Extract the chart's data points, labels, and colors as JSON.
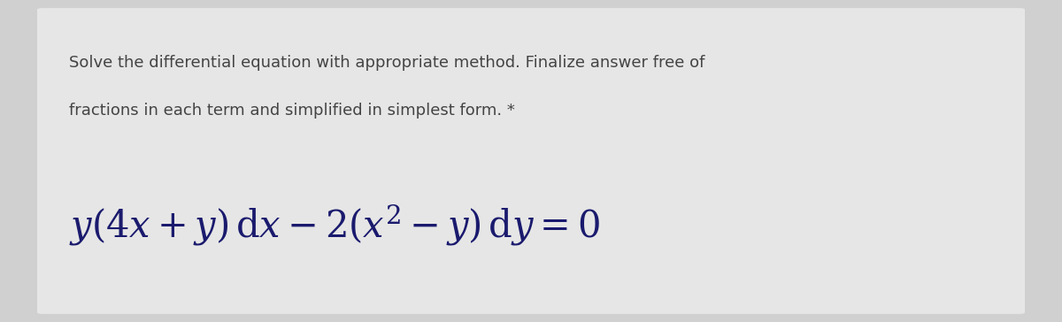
{
  "background_color": "#d0d0d0",
  "card_color": "#e6e6e6",
  "instruction_line1": "Solve the differential equation with appropriate method. Finalize answer free of",
  "instruction_line2": "fractions in each term and simplified in simplest form. *",
  "instruction_fontsize": 13.0,
  "instruction_color": "#444444",
  "equation": "$y(4x + y)\\,\\mathrm{d}x - 2(x^2 - y)\\,\\mathrm{d}y = 0$",
  "equation_fontsize": 30,
  "equation_color": "#1a1a6e",
  "fig_width": 12.0,
  "fig_height": 3.64
}
